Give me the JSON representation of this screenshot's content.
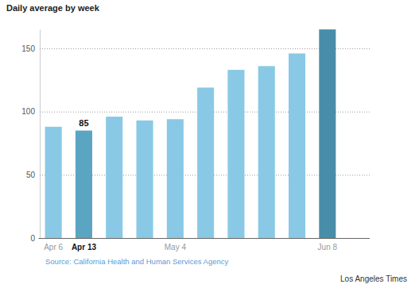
{
  "chart_data": {
    "type": "bar",
    "title": "Daily average by week",
    "categories": [
      "Apr 6",
      "Apr 13",
      null,
      null,
      "May 4",
      null,
      null,
      null,
      null,
      "Jun 8"
    ],
    "values": [
      88,
      85,
      96,
      93,
      94,
      119,
      133,
      136,
      146,
      165
    ],
    "colors": [
      "#89c9e5",
      "#5aa5c2",
      "#89c9e5",
      "#89c9e5",
      "#89c9e5",
      "#89c9e5",
      "#89c9e5",
      "#89c9e5",
      "#89c9e5",
      "#488ea9"
    ],
    "ylim": [
      0,
      165
    ],
    "yticks": [
      0,
      50,
      100,
      150
    ],
    "grid": true,
    "annotations": [
      {
        "x": "Apr 13",
        "text": "85"
      }
    ],
    "source": "Source: California Health and Human Services Agency",
    "credit": "Los Angeles Times"
  }
}
